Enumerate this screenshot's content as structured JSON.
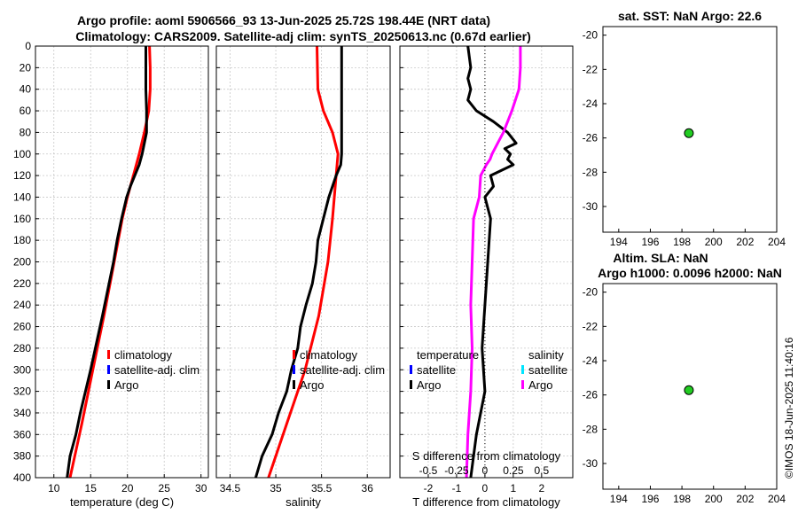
{
  "title_line1": "Argo profile: aoml 5906566_93 13-Jun-2025 25.72S 198.44E (NRT data)",
  "title_line2": "Climatology: CARS2009. Satellite-adj clim: synTS_20250613.nc (0.67d earlier)",
  "watermark": "©IMOS 18-Jun-2025 11:40:16",
  "colors": {
    "climatology": "#ff0000",
    "satellite": "#0000ff",
    "argo": "#000000",
    "s_satellite": "#00e5ff",
    "s_argo": "#ff00ff",
    "point": "#22cc22",
    "grid": "#c8c8c8"
  },
  "chart_data": [
    {
      "id": "temperature",
      "type": "line",
      "xlabel": "temperature (deg C)",
      "ylabel": "",
      "xlim": [
        7.5,
        31
      ],
      "ylim": [
        0,
        400
      ],
      "yreversed": true,
      "xticks": [
        10,
        15,
        20,
        25,
        30
      ],
      "xtick_labels": [
        "10",
        "15",
        "20",
        "25",
        "30"
      ],
      "yticks": [
        0,
        20,
        40,
        60,
        80,
        100,
        120,
        140,
        160,
        180,
        200,
        220,
        240,
        260,
        280,
        300,
        320,
        340,
        360,
        380,
        400
      ],
      "ytick_labels": [
        "0",
        "20",
        "40",
        "60",
        "80",
        "100",
        "120",
        "140",
        "160",
        "180",
        "200",
        "220",
        "240",
        "260",
        "280",
        "300",
        "320",
        "340",
        "360",
        "380",
        "400"
      ],
      "legend": [
        "climatology",
        "satellite-adj. clim",
        "Argo"
      ],
      "legend_position": "right-middle",
      "series": [
        {
          "name": "climatology",
          "color": "#ff0000",
          "depth": [
            0,
            20,
            40,
            50,
            60,
            80,
            100,
            120,
            140,
            160,
            200,
            250,
            300,
            350,
            400
          ],
          "values": [
            23.0,
            23.1,
            23.1,
            23.0,
            22.9,
            22.3,
            21.6,
            20.8,
            20.0,
            19.3,
            18.2,
            16.8,
            15.3,
            13.8,
            12.2
          ]
        },
        {
          "name": "Argo",
          "color": "#000000",
          "depth": [
            0,
            20,
            40,
            60,
            80,
            100,
            110,
            120,
            130,
            140,
            160,
            180,
            200,
            250,
            300,
            340,
            360,
            380,
            400
          ],
          "values": [
            22.5,
            22.5,
            22.5,
            22.6,
            22.6,
            22.0,
            21.6,
            21.0,
            20.4,
            19.9,
            19.2,
            18.6,
            18.1,
            16.6,
            15.0,
            13.6,
            13.0,
            12.2,
            11.8
          ]
        }
      ]
    },
    {
      "id": "salinity",
      "type": "line",
      "xlabel": "salinity",
      "xlim": [
        34.35,
        36.25
      ],
      "ylim": [
        0,
        400
      ],
      "yreversed": true,
      "xticks": [
        34.5,
        35,
        35.5,
        36
      ],
      "xtick_labels": [
        "34.5",
        "35",
        "35.5",
        "36"
      ],
      "yticks": [
        0,
        20,
        40,
        60,
        80,
        100,
        120,
        140,
        160,
        180,
        200,
        220,
        240,
        260,
        280,
        300,
        320,
        340,
        360,
        380,
        400
      ],
      "legend": [
        "climatology",
        "satellite-adj. clim",
        "Argo"
      ],
      "legend_position": "right-middle",
      "series": [
        {
          "name": "climatology",
          "color": "#ff0000",
          "depth": [
            0,
            40,
            60,
            80,
            100,
            120,
            160,
            200,
            250,
            300,
            350,
            400
          ],
          "values": [
            35.45,
            35.46,
            35.52,
            35.62,
            35.68,
            35.66,
            35.62,
            35.57,
            35.47,
            35.32,
            35.12,
            34.92
          ]
        },
        {
          "name": "Argo",
          "color": "#000000",
          "depth": [
            0,
            100,
            110,
            120,
            140,
            160,
            180,
            200,
            220,
            240,
            260,
            280,
            300,
            320,
            340,
            360,
            380,
            400
          ],
          "values": [
            35.72,
            35.72,
            35.71,
            35.66,
            35.58,
            35.52,
            35.46,
            35.44,
            35.4,
            35.33,
            35.27,
            35.24,
            35.17,
            35.12,
            35.03,
            34.96,
            34.85,
            34.78
          ]
        }
      ]
    },
    {
      "id": "difference",
      "type": "line",
      "xlabel": "T difference from climatology",
      "x2label": "S difference from climatology",
      "xlim": [
        -3,
        3.1
      ],
      "ylim": [
        0,
        400
      ],
      "yreversed": true,
      "xticks": [
        -2,
        -1,
        0,
        1,
        2
      ],
      "xtick_labels": [
        "-2",
        "-1",
        "0",
        "1",
        "2"
      ],
      "x2ticks": [
        -0.5,
        -0.25,
        0,
        0.25,
        0.5
      ],
      "x2tick_labels": [
        "-0.5",
        "-0.25",
        "0",
        "0.25",
        "0.5"
      ],
      "yticks": [
        0,
        20,
        40,
        60,
        80,
        100,
        120,
        140,
        160,
        180,
        200,
        220,
        240,
        260,
        280,
        300,
        320,
        340,
        360,
        380,
        400
      ],
      "legend_t": [
        "temperature",
        "satellite",
        "Argo"
      ],
      "legend_s": [
        "salinity",
        "satellite",
        "Argo"
      ],
      "series": [
        {
          "name": "T Argo",
          "color": "#000000",
          "depth": [
            0,
            20,
            30,
            40,
            50,
            60,
            70,
            80,
            90,
            95,
            100,
            105,
            110,
            115,
            120,
            130,
            140,
            160,
            200,
            240,
            280,
            320,
            360,
            400
          ],
          "values": [
            -0.6,
            -0.5,
            -0.6,
            -0.5,
            -0.6,
            -0.3,
            0.3,
            0.8,
            1.1,
            0.7,
            0.9,
            0.8,
            1.0,
            0.6,
            0.2,
            0.3,
            0.0,
            0.2,
            0.1,
            0.0,
            -0.1,
            0.0,
            -0.3,
            -0.5
          ]
        },
        {
          "name": "S Argo",
          "color": "#ff00ff",
          "depth": [
            0,
            20,
            40,
            60,
            80,
            90,
            100,
            105,
            110,
            120,
            140,
            160,
            200,
            240,
            280,
            320,
            360,
            400
          ],
          "values": [
            1.25,
            1.25,
            1.2,
            0.95,
            0.65,
            0.45,
            0.25,
            0.18,
            0.05,
            -0.15,
            -0.2,
            -0.4,
            -0.45,
            -0.5,
            -0.45,
            -0.5,
            -0.6,
            -0.65
          ]
        }
      ]
    },
    {
      "id": "sst_map",
      "type": "scatter",
      "title": "sat. SST: NaN Argo: 22.6",
      "xlim": [
        193,
        204
      ],
      "ylim": [
        -31.5,
        -19.5
      ],
      "xticks": [
        194,
        196,
        198,
        200,
        202,
        204
      ],
      "xtick_labels": [
        "194",
        "196",
        "198",
        "200",
        "202",
        "204"
      ],
      "yticks": [
        -20,
        -22,
        -24,
        -26,
        -28,
        -30
      ],
      "ytick_labels": [
        "-20",
        "-22",
        "-24",
        "-26",
        "-28",
        "-30"
      ],
      "points": [
        {
          "x": 198.44,
          "y": -25.72
        }
      ]
    },
    {
      "id": "sla_map",
      "type": "scatter",
      "title": "Altim. SLA: NaN",
      "title2": "Argo h1000: 0.0096 h2000: NaN",
      "xlim": [
        193,
        204
      ],
      "ylim": [
        -31.5,
        -19.5
      ],
      "xticks": [
        194,
        196,
        198,
        200,
        202,
        204
      ],
      "xtick_labels": [
        "194",
        "196",
        "198",
        "200",
        "202",
        "204"
      ],
      "yticks": [
        -20,
        -22,
        -24,
        -26,
        -28,
        -30
      ],
      "ytick_labels": [
        "-20",
        "-22",
        "-24",
        "-26",
        "-28",
        "-30"
      ],
      "points": [
        {
          "x": 198.44,
          "y": -25.72
        }
      ]
    }
  ]
}
